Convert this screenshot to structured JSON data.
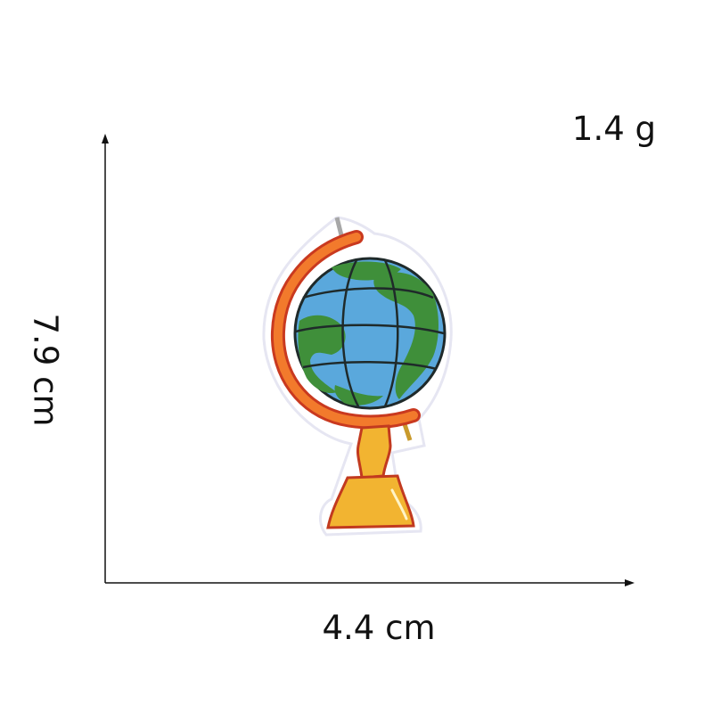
{
  "measurements": {
    "weight": "1.4 g",
    "width": "4.4 cm",
    "height": "7.9 cm"
  },
  "product": {
    "icon": "globe-embroidered-patch-icon",
    "colors": {
      "ocean": "#5aa8dc",
      "land": "#3f8f3a",
      "stand": "#e8542a",
      "base": "#f2b431"
    }
  }
}
